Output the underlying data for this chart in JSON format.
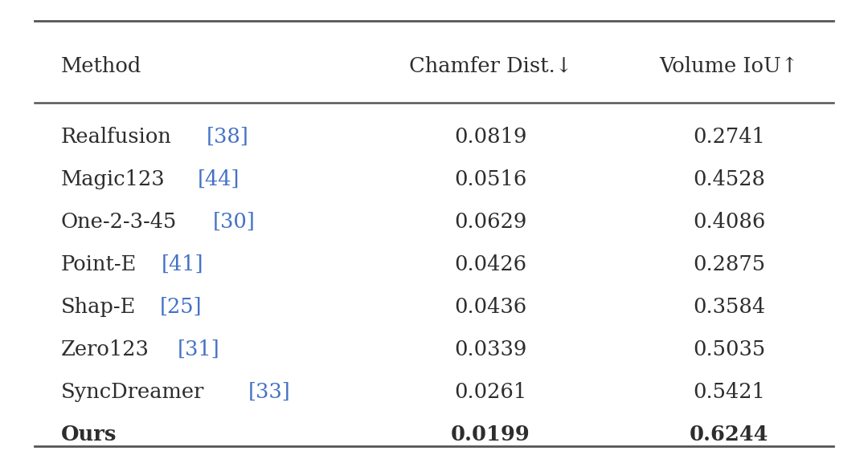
{
  "columns": [
    "Method",
    "Chamfer Dist.↓",
    "Volume IoU↑"
  ],
  "rows": [
    {
      "method": "Realfusion",
      "cite": "[38]",
      "chamfer": "0.0819",
      "iou": "0.2741",
      "bold": false
    },
    {
      "method": "Magic123",
      "cite": "[44]",
      "chamfer": "0.0516",
      "iou": "0.4528",
      "bold": false
    },
    {
      "method": "One-2-3-45",
      "cite": "[30]",
      "chamfer": "0.0629",
      "iou": "0.4086",
      "bold": false
    },
    {
      "method": "Point-E",
      "cite": "[41]",
      "chamfer": "0.0426",
      "iou": "0.2875",
      "bold": false
    },
    {
      "method": "Shap-E",
      "cite": "[25]",
      "chamfer": "0.0436",
      "iou": "0.3584",
      "bold": false
    },
    {
      "method": "Zero123",
      "cite": "[31]",
      "chamfer": "0.0339",
      "iou": "0.5035",
      "bold": false
    },
    {
      "method": "SyncDreamer",
      "cite": "[33]",
      "chamfer": "0.0261",
      "iou": "0.5421",
      "bold": false
    },
    {
      "method": "Ours",
      "cite": "",
      "chamfer": "0.0199",
      "iou": "0.6244",
      "bold": true
    }
  ],
  "bg_color": "#ffffff",
  "text_color": "#2d2d2d",
  "ref_color": "#4472c4",
  "line_color": "#555555",
  "fontsize": 18.5,
  "figwidth": 10.8,
  "figheight": 5.67,
  "dpi": 100
}
